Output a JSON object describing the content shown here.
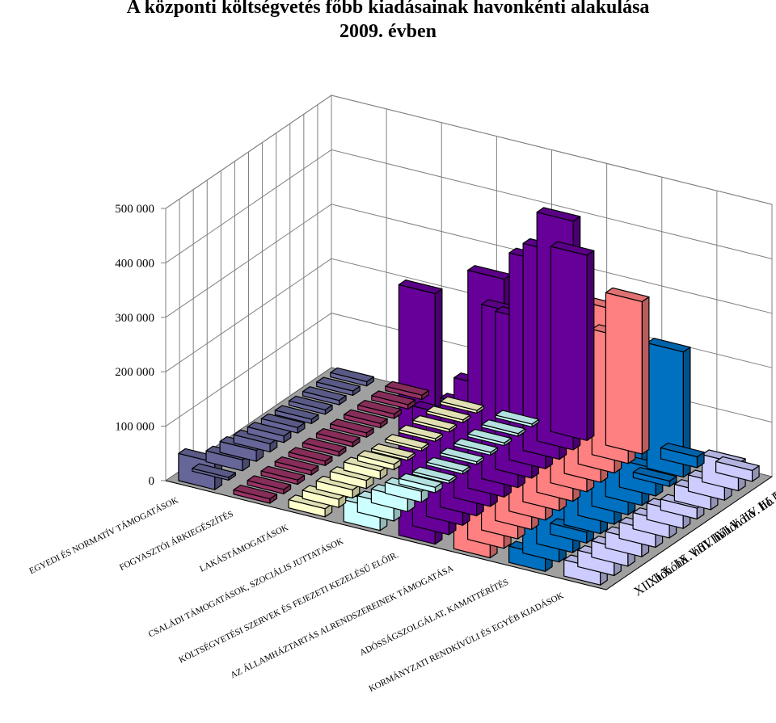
{
  "chart_data": {
    "type": "bar",
    "subtype": "3d-column",
    "title": [
      "A központi költségvetés főbb kiadásainak havonkénti alakulása",
      "2009. évben"
    ],
    "zlim": [
      0,
      500000
    ],
    "zticks": [
      "0",
      "100 000",
      "200 000",
      "300 000",
      "400 000",
      "500 000"
    ],
    "grid": true,
    "categories": [
      "EGYEDI ÉS NORMATÍV TÁMOGATÁSOK",
      "FOGYASZTÓI ÁRKIEGÉSZÍTÉS",
      "LAKÁSTÁMOGATÁSOK",
      "CSALÁDI TÁMOGATÁSOK, SZOCIÁLIS JUTTATÁSOK",
      "KÖLTSÉGVETÉSI SZERVEK ÉS FEJEZETI KEZELÉSŰ ELŐIR.",
      "AZ ÁLLAMHÁZTARTÁS ALRENDSZEREINEK TÁMOGATÁSA",
      "ADÓSSÁGSZOLGÁLAT, KAMATTÉRÍTÉS",
      "KORMÁNYZATI RENDKÍVÜLI ÉS EGYÉB KIADÁSOK"
    ],
    "months": [
      "I. hó",
      "II. hó",
      "III. hó",
      "IV. hó",
      "V. hó",
      "VI. hó",
      "VII. hó",
      "VIII. hó",
      "IX. hó",
      "X. hó",
      "XI. hó",
      "XII. hó"
    ],
    "month_labels_shown": [
      "I. hó",
      "II. hó",
      "III. hó",
      "IV. hó",
      "V. hó",
      "VI. hó",
      "VII. hó",
      "VIII. hó",
      "IX. hó",
      "X. hó",
      "XI. hó",
      "XII. hó"
    ],
    "colors": [
      "#666699",
      "#993366",
      "#ffffcc",
      "#ccffff",
      "#660099",
      "#ff8080",
      "#0070c0",
      "#ccccff"
    ],
    "values": [
      [
        8000,
        8000,
        8000,
        8000,
        8000,
        10000,
        12000,
        15000,
        20000,
        20000,
        5000,
        50000
      ],
      [
        8000,
        8000,
        8000,
        8000,
        8000,
        8000,
        8000,
        8000,
        8000,
        8000,
        8000,
        8000
      ],
      [
        5000,
        5000,
        5000,
        5000,
        5000,
        5000,
        10000,
        15000,
        15000,
        15000,
        15000,
        15000
      ],
      [
        5000,
        5000,
        5000,
        5000,
        5000,
        5000,
        5000,
        10000,
        20000,
        25000,
        30000,
        40000
      ],
      [
        340000,
        420000,
        380000,
        380000,
        290000,
        320000,
        400000,
        220000,
        200000,
        190000,
        220000,
        460000
      ],
      [
        280000,
        230000,
        300000,
        110000,
        200000,
        200000,
        210000,
        200000,
        200000,
        140000,
        300000,
        210000
      ],
      [
        20000,
        230000,
        10000,
        50000,
        190000,
        120000,
        100000,
        120000,
        20000,
        100000,
        100000,
        30000
      ],
      [
        20000,
        50000,
        30000,
        30000,
        20000,
        30000,
        30000,
        30000,
        30000,
        30000,
        30000,
        30000
      ]
    ]
  }
}
